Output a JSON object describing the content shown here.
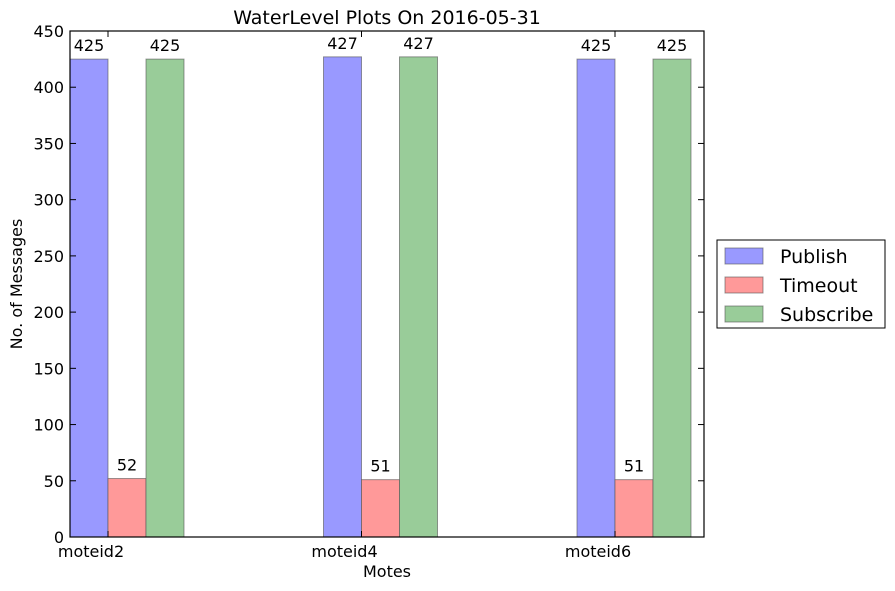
{
  "chart_data": {
    "type": "bar",
    "title": "WaterLevel Plots On 2016-05-31",
    "xlabel": "Motes",
    "ylabel": "No. of Messages",
    "categories": [
      "moteid2",
      "moteid4",
      "moteid6"
    ],
    "series": [
      {
        "name": "Publish",
        "values": [
          425,
          427,
          425
        ],
        "color": "#9999ff"
      },
      {
        "name": "Timeout",
        "values": [
          52,
          51,
          51
        ],
        "color": "#ff9999"
      },
      {
        "name": "Subscribe",
        "values": [
          425,
          427,
          425
        ],
        "color": "#99cc99"
      }
    ],
    "ylim": [
      0,
      450
    ],
    "yticks": [
      0,
      50,
      100,
      150,
      200,
      250,
      300,
      350,
      400,
      450
    ],
    "grid": false,
    "legend_position": "outside-right"
  }
}
